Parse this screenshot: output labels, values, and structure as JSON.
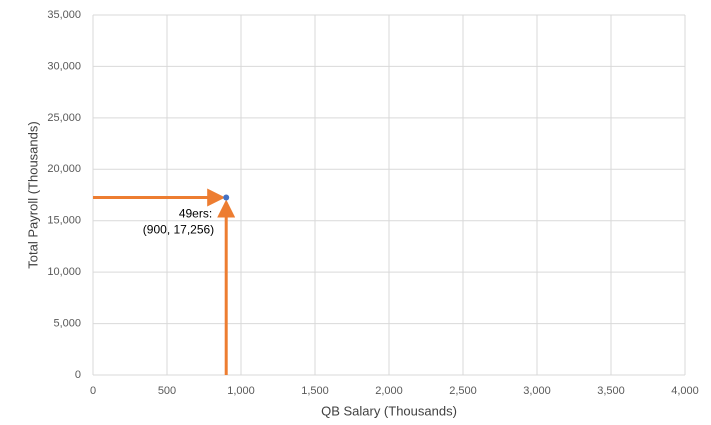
{
  "chart_data": {
    "type": "scatter",
    "x_label": "QB Salary (Thousands)",
    "y_label": "Total Payroll (Thousands)",
    "x": [
      900
    ],
    "values": [
      17256
    ],
    "color": "#4472c4",
    "point_labels": [
      "49ers:"
    ],
    "value_labels": [
      "(900, 17,256)"
    ],
    "arrow_color": "#ed7d31",
    "xlim": [
      0,
      4000
    ],
    "xticks": [
      0,
      500,
      {
        "value": 1000,
        "label": "1,000"
      },
      {
        "value": 1500,
        "label": "1,500"
      },
      {
        "value": 2000,
        "label": "2,000"
      },
      {
        "value": 2500,
        "label": "2,500"
      },
      {
        "value": 3000,
        "label": "3,000"
      },
      {
        "value": 3500,
        "label": "3,500"
      },
      {
        "value": 4000,
        "label": "4,000"
      }
    ],
    "ylim": [
      0,
      35000
    ],
    "yticks": [
      0,
      {
        "value": 5000,
        "label": "5,000"
      },
      {
        "value": 10000,
        "label": "10,000"
      },
      {
        "value": 15000,
        "label": "15,000"
      },
      {
        "value": 20000,
        "label": "20,000"
      },
      {
        "value": 25000,
        "label": "25,000"
      },
      {
        "value": 30000,
        "label": "30,000"
      },
      {
        "value": 35000,
        "label": "35,000"
      }
    ],
    "grid": true
  }
}
